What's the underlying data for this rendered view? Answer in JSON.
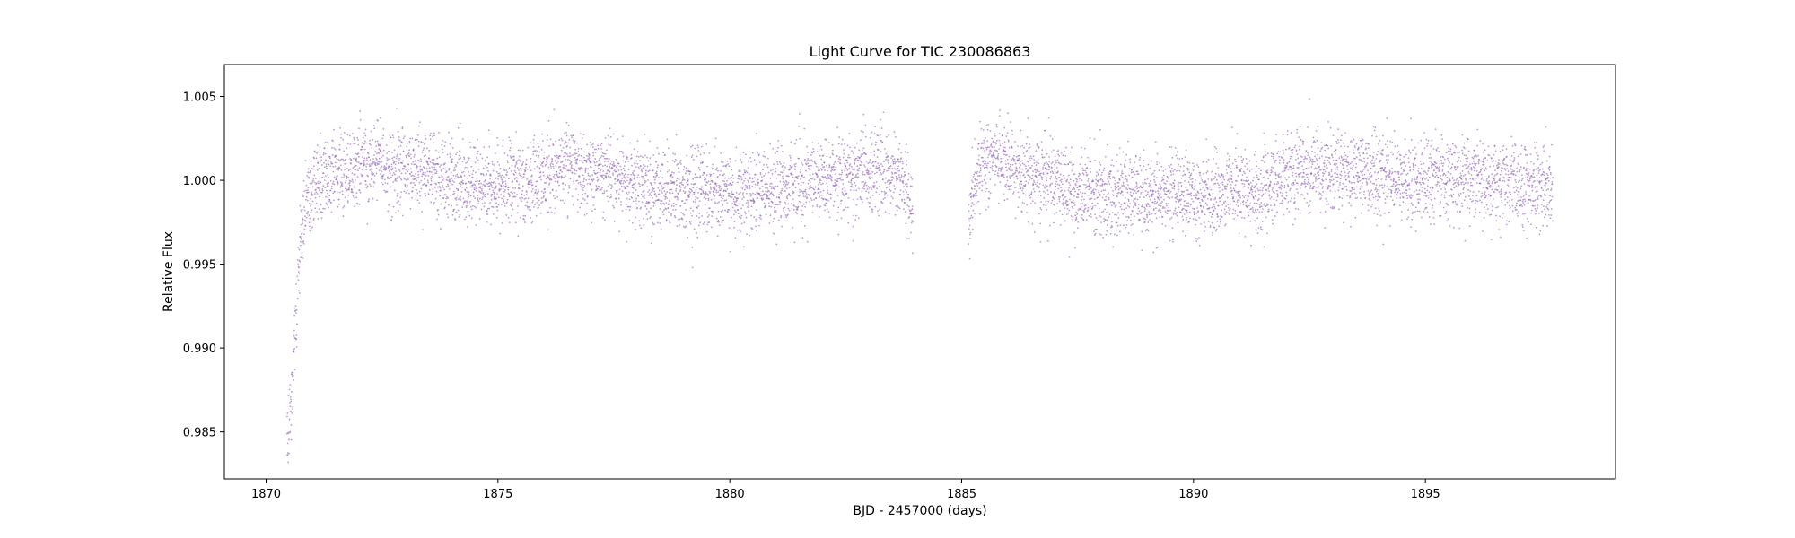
{
  "chart_data": {
    "type": "scatter",
    "title": "Light Curve for TIC 230086863",
    "xlabel": "BJD - 2457000 (days)",
    "ylabel": "Relative Flux",
    "xlim": [
      1869.1,
      1899.1
    ],
    "ylim": [
      0.9822,
      1.0069
    ],
    "xticks": [
      {
        "value": 1870,
        "label": "1870"
      },
      {
        "value": 1875,
        "label": "1875"
      },
      {
        "value": 1880,
        "label": "1880"
      },
      {
        "value": 1885,
        "label": "1885"
      },
      {
        "value": 1890,
        "label": "1890"
      },
      {
        "value": 1895,
        "label": "1895"
      }
    ],
    "yticks": [
      {
        "value": 0.985,
        "label": "0.985"
      },
      {
        "value": 0.99,
        "label": "0.990"
      },
      {
        "value": 0.995,
        "label": "0.995"
      },
      {
        "value": 1.0,
        "label": "1.000"
      },
      {
        "value": 1.005,
        "label": "1.005"
      }
    ],
    "grid": false,
    "marker_color": "#9467bd",
    "series": [
      {
        "segments": [
          {
            "x_start": 1870.45,
            "x_end": 1883.95
          },
          {
            "x_start": 1885.15,
            "x_end": 1897.75
          }
        ],
        "trend": [
          [
            1870.45,
            0.984
          ],
          [
            1870.55,
            0.987
          ],
          [
            1870.65,
            0.992
          ],
          [
            1870.75,
            0.9965
          ],
          [
            1870.9,
            0.999
          ],
          [
            1871.1,
            1.0002
          ],
          [
            1872.0,
            1.0007
          ],
          [
            1872.5,
            1.001
          ],
          [
            1873.5,
            1.0005
          ],
          [
            1874.5,
            0.9997
          ],
          [
            1875.5,
            0.9998
          ],
          [
            1876.5,
            1.0008
          ],
          [
            1877.5,
            1.0002
          ],
          [
            1878.5,
            0.9995
          ],
          [
            1879.5,
            0.9993
          ],
          [
            1880.5,
            0.9993
          ],
          [
            1881.5,
            1.0
          ],
          [
            1882.5,
            1.0003
          ],
          [
            1883.3,
            1.0007
          ],
          [
            1883.7,
            1.0004
          ],
          [
            1883.85,
            0.9995
          ],
          [
            1883.95,
            0.9975
          ],
          [
            1885.15,
            0.9975
          ],
          [
            1885.25,
            0.9995
          ],
          [
            1885.4,
            1.001
          ],
          [
            1885.8,
            1.0012
          ],
          [
            1886.5,
            1.0003
          ],
          [
            1887.5,
            0.9993
          ],
          [
            1888.5,
            0.9993
          ],
          [
            1889.5,
            0.9992
          ],
          [
            1890.5,
            0.999
          ],
          [
            1891.5,
            0.9995
          ],
          [
            1892.0,
            1.0005
          ],
          [
            1893.0,
            1.0005
          ],
          [
            1894.0,
            1.0003
          ],
          [
            1895.0,
            0.9998
          ],
          [
            1896.0,
            1.0002
          ],
          [
            1897.0,
            0.9997
          ],
          [
            1897.75,
            0.9995
          ]
        ],
        "scatter_sigma": 0.0012
      }
    ]
  }
}
